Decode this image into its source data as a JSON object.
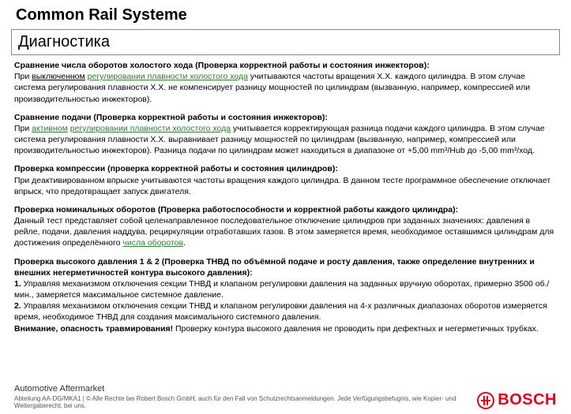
{
  "header": {
    "title": "Common Rail Systeme",
    "subtitle": "Диагностика"
  },
  "sections": {
    "s1": {
      "heading": "Сравнение числа оборотов холостого хода",
      "suffix": " (Проверка корректной работы и состояния инжекторов):",
      "l1a": "При ",
      "l1b": "выключенном",
      "l1c": " ",
      "l1d": "регулировании плавности холостого хода",
      "l1e": " учитываются частоты вращения Х.Х. каждого цилиндра. В этом случае система регулирования плавности Х.Х. не компенсирует разницу мощностей по цилиндрам (вызванную, например, компрессией или производительностью инжекторов)."
    },
    "s2": {
      "heading": "Сравнение подачи",
      "suffix": " (Проверка корректной работы и состояния инжекторов):",
      "l1a": "При ",
      "l1b": "активном",
      "l1c": " ",
      "l1d": "регулировании плавности холостого хода",
      "l1e": " учитывается корректирующая разница подачи каждого цилиндра. В этом случае система регулирования плавности Х.Х. выравнивает разницу мощностей по цилиндрам (вызванную, например, компрессией или производительностью инжекторов). Разница подачи по цилиндрам может находиться в диапазоне от +5,00 mm³/Hub до -5,00 mm³/ход."
    },
    "s3": {
      "heading": "Проверка компрессии",
      "suffix": " (проверка корректной работы и состояния цилиндров):",
      "body": "При деактивированном впрыске учитываются частоты вращения каждого цилиндра. В данном тесте программное обеспечение отключает впрыск, что предотвращает запуск двигателя."
    },
    "s4": {
      "heading": "Проверка номинальных оборотов",
      "suffix": " (Проверка работоспособности и корректной работы каждого цилиндра):",
      "b1": "Данный тест представляет собой целенаправленное последовательное отключение цилиндров при заданных значениях: давления в рейле, подачи, давления наддува, рециркуляции отработавших газов. В этом замеряется время, необходимое оставшимся цилиндрам для достижения определённого ",
      "b2": "числа оборотов",
      "b3": "."
    },
    "s5": {
      "heading": "Проверка высокого давления 1 & 2",
      "suffix": " (Проверка ТНВД по объёмной подаче и росту давления, также определение внутренних и    внешних негерметичностей контура высокого давления):",
      "i1n": "1.",
      "i1": " Управляя механизмом отключения секции ТНВД и клапаном регулировки давления на заданных вручную оборотах, примерно 3500 об./мин., замеряется максимальное системное давление.",
      "i2n": "2.",
      "i2": " Управляя механизмом отключения секции ТНВД и клапаном регулировки давления на 4-х различных диапазонах оборотов измеряется время, необходимое ТНВД для создания максимального системного давления.",
      "warn": "Внимание, опасность травмирования!",
      "warntail": " Проверку контура высокого давления не проводить при дефектных и негерметичных трубках."
    }
  },
  "footer": {
    "am": "Automotive Aftermarket",
    "legal": "Abteilung AA-DG/MKA1 | © Alle Rechte bei Robert Bosch GmbH, auch für den Fall von Schutzrechtsanmeldungen. Jede Verfügungsbefugnis, wie Kopier- und Weitergaberecht, bei uns.",
    "brand": "BOSCH"
  },
  "colors": {
    "brand": "#e2001a",
    "link_green": "#2e7d32",
    "text": "#000000"
  }
}
